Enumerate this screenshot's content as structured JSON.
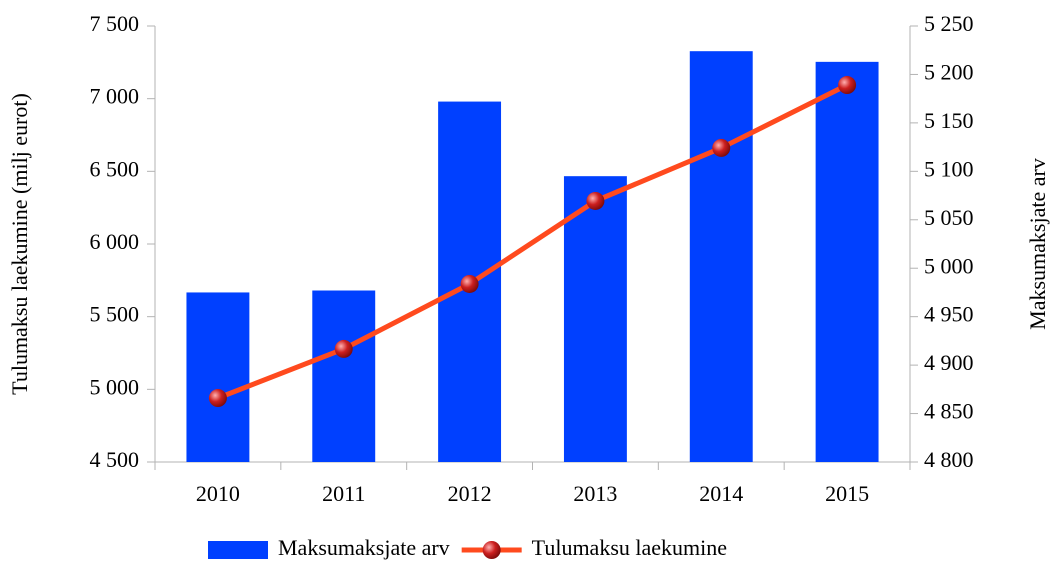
{
  "chart_data": {
    "type": "bar_line",
    "categories": [
      "2010",
      "2011",
      "2012",
      "2013",
      "2014",
      "2015"
    ],
    "series": [
      {
        "name": "Maksumaksjate arv",
        "color": "#0040ff",
        "type": "bar",
        "axis": "y2",
        "values": [
          4975,
          4977,
          5172,
          5095,
          5224,
          5213
        ]
      },
      {
        "name": "Tulumaksu laekumine",
        "color": "#ff4a1e",
        "marker_color": "#cc1f1f",
        "type": "line",
        "axis": "y",
        "values": [
          4940,
          5278,
          5725,
          6296,
          6661,
          7094
        ]
      }
    ],
    "ylabel": "Tulumaksu laekumine (milj eurot)",
    "y2label": "Maksumaksjate arv",
    "ylim": [
      4500,
      7500
    ],
    "yticks": [
      {
        "value": 4500,
        "label": "4 500"
      },
      {
        "value": 5000,
        "label": "5 000"
      },
      {
        "value": 5500,
        "label": "5 500"
      },
      {
        "value": 6000,
        "label": "6 000"
      },
      {
        "value": 6500,
        "label": "6 500"
      },
      {
        "value": 7000,
        "label": "7 000"
      },
      {
        "value": 7500,
        "label": "7 500"
      }
    ],
    "y2lim": [
      4800,
      5250
    ],
    "y2ticks": [
      {
        "value": 4800,
        "label": "4 800"
      },
      {
        "value": 4850,
        "label": "4 850"
      },
      {
        "value": 4900,
        "label": "4 900"
      },
      {
        "value": 4950,
        "label": "4 950"
      },
      {
        "value": 5000,
        "label": "5 000"
      },
      {
        "value": 5050,
        "label": "5 050"
      },
      {
        "value": 5100,
        "label": "5 100"
      },
      {
        "value": 5150,
        "label": "5 150"
      },
      {
        "value": 5200,
        "label": "5 200"
      },
      {
        "value": 5250,
        "label": "5 250"
      }
    ],
    "legend": "bottom"
  }
}
